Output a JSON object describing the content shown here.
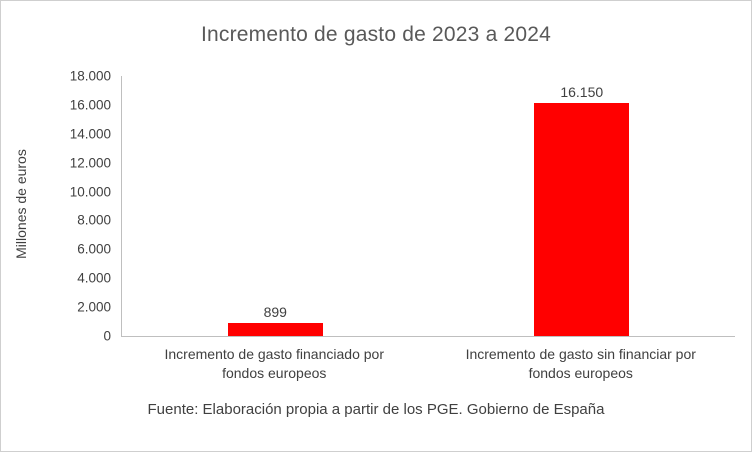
{
  "chart_data": {
    "type": "bar",
    "title": "Incremento de gasto de 2023 a 2024",
    "ylabel": "Millones de euros",
    "categories": [
      "Incremento de gasto financiado por fondos europeos",
      "Incremento de gasto sin financiar por fondos europeos"
    ],
    "values": [
      899,
      16150
    ],
    "value_labels": [
      "899",
      "16.150"
    ],
    "ylim": [
      0,
      18000
    ],
    "ytick_step": 2000,
    "ytick_labels": [
      "0",
      "2.000",
      "4.000",
      "6.000",
      "8.000",
      "10.000",
      "12.000",
      "14.000",
      "16.000",
      "18.000"
    ],
    "grid": false,
    "legend": false,
    "bar_color": "#ff0000",
    "source": "Fuente: Elaboración propia a partir de los PGE. Gobierno de España"
  }
}
